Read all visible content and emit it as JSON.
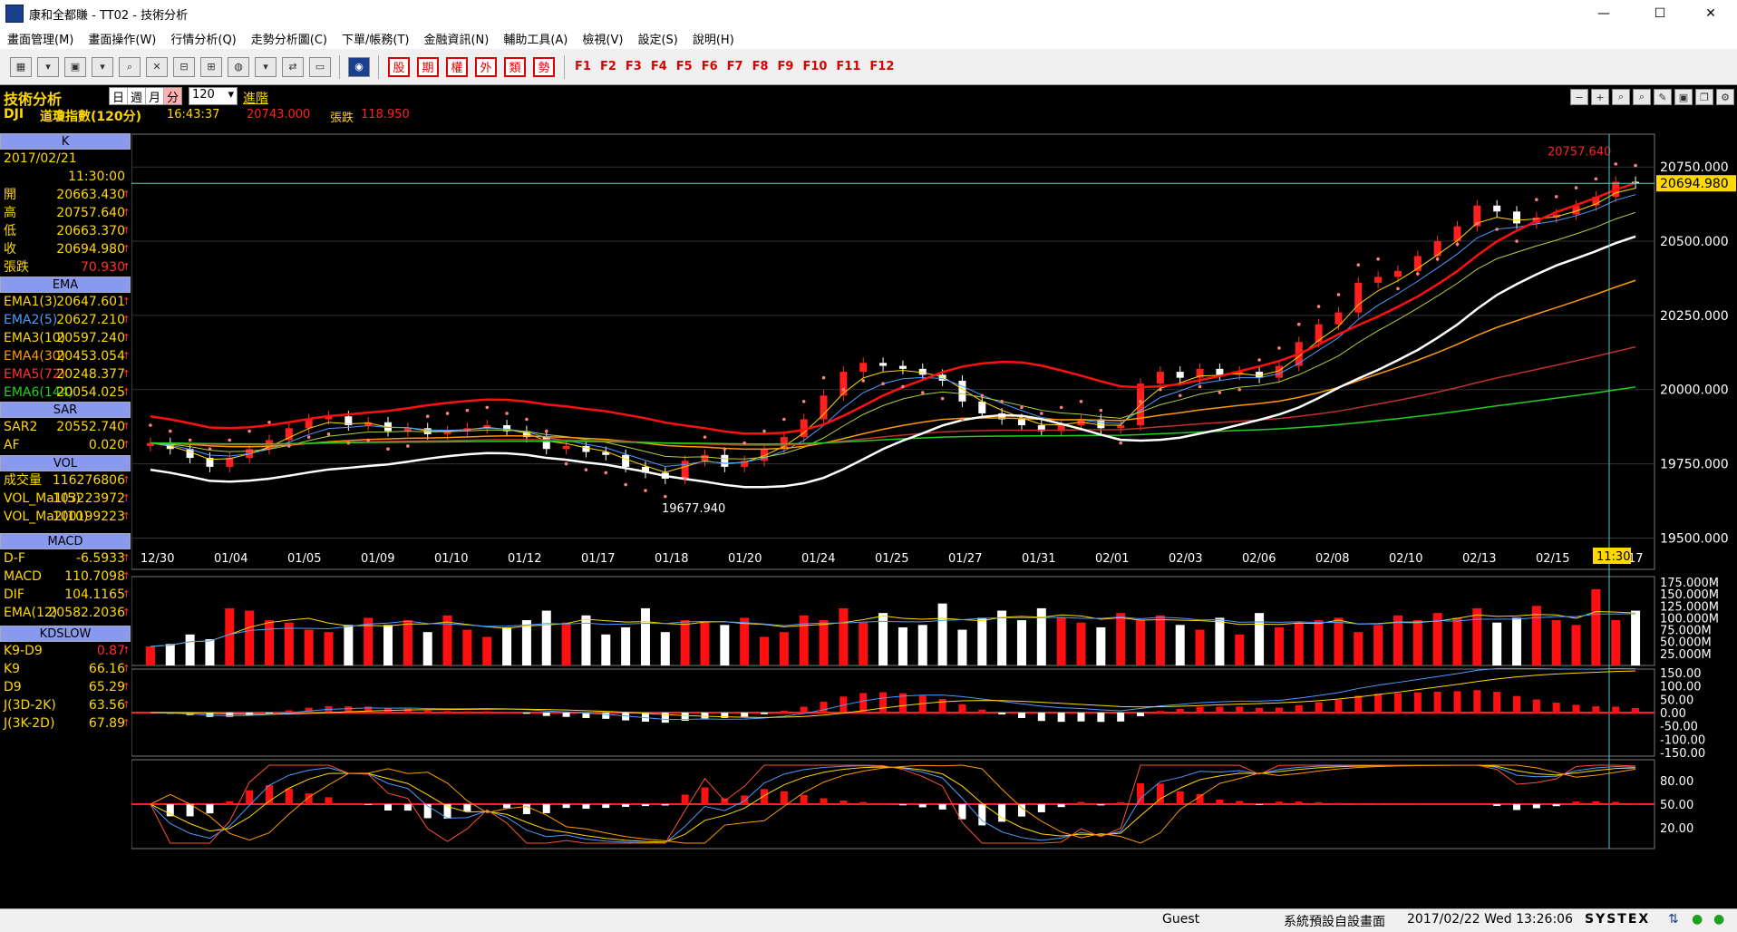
{
  "window": {
    "title": "康和全都賺 - TT02 - 技術分析",
    "minimize": "—",
    "maximize": "☐",
    "close": "✕"
  },
  "menu": [
    "畫面管理(M)",
    "畫面操作(W)",
    "行情分析(Q)",
    "走勢分析圖(C)",
    "下單/帳務(T)",
    "金融資訊(N)",
    "輔助工具(A)",
    "檢視(V)",
    "設定(S)",
    "說明(H)"
  ],
  "toolbar": {
    "market_keys": [
      "股",
      "期",
      "權",
      "外",
      "類",
      "勢"
    ],
    "fkeys": [
      "F1",
      "F2",
      "F3",
      "F4",
      "F5",
      "F6",
      "F7",
      "F8",
      "F9",
      "F10",
      "F11",
      "F12"
    ]
  },
  "info": {
    "panel_title": "技術分析",
    "periods": [
      "日",
      "週",
      "月",
      "分"
    ],
    "count": "120",
    "advanced": "進階",
    "symbol": "DJI",
    "name": "道瓊指數(120分)",
    "time": "16:43:37",
    "price": "20743.000",
    "change_label": "張跌",
    "change": "118.950"
  },
  "k_panel": {
    "title": "K",
    "date": "2017/02/21",
    "time": "11:30:00",
    "rows": [
      {
        "label": "開",
        "value": "20663.430"
      },
      {
        "label": "高",
        "value": "20757.640"
      },
      {
        "label": "低",
        "value": "20663.370"
      },
      {
        "label": "收",
        "value": "20694.980"
      },
      {
        "label": "張跌",
        "value": "70.930"
      }
    ]
  },
  "ema_panel": {
    "title": "EMA",
    "rows": [
      {
        "label": "EMA1(3)",
        "value": "20647.601",
        "color": "#ffd800"
      },
      {
        "label": "EMA2(5)",
        "value": "20627.210",
        "color": "#4a9bff"
      },
      {
        "label": "EMA3(10)",
        "value": "20597.240",
        "color": "#ffd800"
      },
      {
        "label": "EMA4(30)",
        "value": "20453.054",
        "color": "#ff9900"
      },
      {
        "label": "EMA5(72)",
        "value": "20248.377",
        "color": "#ff3030"
      },
      {
        "label": "EMA6(144)",
        "value": "20054.025",
        "color": "#20d020"
      }
    ]
  },
  "sar_panel": {
    "title": "SAR",
    "rows": [
      {
        "label": "SAR2",
        "value": "20552.740"
      },
      {
        "label": "AF",
        "value": "0.020"
      }
    ]
  },
  "vol_panel": {
    "title": "VOL",
    "rows": [
      {
        "label": "成交量",
        "value": "116276806"
      },
      {
        "label": "VOL_Ma1(5)",
        "value": "103223972"
      },
      {
        "label": "VOL_Ma2(10)",
        "value": "100199223"
      }
    ]
  },
  "macd_panel": {
    "title": "MACD",
    "rows": [
      {
        "label": "D-F",
        "value": "-6.5933"
      },
      {
        "label": "MACD",
        "value": "110.7098"
      },
      {
        "label": "DIF",
        "value": "104.1165"
      },
      {
        "label": "EMA(12)",
        "value": "20582.2036"
      }
    ]
  },
  "kd_panel": {
    "title": "KDSLOW",
    "rows": [
      {
        "label": "K9-D9",
        "value": "0.87"
      },
      {
        "label": "K9",
        "value": "66.16"
      },
      {
        "label": "D9",
        "value": "65.29"
      },
      {
        "label": "J(3D-2K)",
        "value": "63.56"
      },
      {
        "label": "J(3K-2D)",
        "value": "67.89"
      }
    ]
  },
  "chart_data": {
    "type": "line",
    "price_axis": [
      "20750.000",
      "20500.000",
      "20250.000",
      "20000.000",
      "19750.000",
      "19500.000"
    ],
    "price_ticks": [
      20750,
      20500,
      20250,
      20000,
      19750,
      19500
    ],
    "ylim": [
      19480,
      20830
    ],
    "current_price": "20694.980",
    "current_value": 20694.98,
    "high_label": "20757.640",
    "high_value": 20757.64,
    "low_label": "19677.940",
    "low_value": 19677.94,
    "x_labels": [
      "12/30",
      "01/04",
      "01/05",
      "01/09",
      "01/10",
      "01/12",
      "01/17",
      "01/18",
      "01/20",
      "01/24",
      "01/25",
      "01/27",
      "01/31",
      "02/01",
      "02/03",
      "02/06",
      "02/08",
      "02/10",
      "02/13",
      "02/15",
      "02/17"
    ],
    "cursor_label": "11:30",
    "close": [
      19820,
      19800,
      19770,
      19740,
      19770,
      19800,
      19830,
      19870,
      19900,
      19910,
      19880,
      19890,
      19860,
      19870,
      19850,
      19860,
      19870,
      19880,
      19860,
      19840,
      19800,
      19810,
      19790,
      19780,
      19740,
      19720,
      19700,
      19760,
      19780,
      19740,
      19760,
      19800,
      19840,
      19900,
      19980,
      20060,
      20090,
      20080,
      20070,
      20050,
      20030,
      19960,
      19920,
      19900,
      19880,
      19860,
      19880,
      19900,
      19870,
      19880,
      20020,
      20060,
      20040,
      20070,
      20050,
      20060,
      20040,
      20080,
      20160,
      20220,
      20260,
      20360,
      20380,
      20400,
      20450,
      20500,
      20550,
      20620,
      20600,
      20560,
      20580,
      20590,
      20620,
      20650,
      20700,
      20695
    ],
    "volume_axis": [
      "175.000M",
      "150.000M",
      "125.000M",
      "100.000M",
      "75.000M",
      "50.000M",
      "25.000M"
    ],
    "volume": [
      40,
      45,
      65,
      55,
      120,
      115,
      95,
      90,
      75,
      70,
      85,
      100,
      85,
      95,
      70,
      105,
      75,
      60,
      80,
      95,
      115,
      90,
      105,
      65,
      80,
      120,
      70,
      95,
      90,
      85,
      100,
      60,
      70,
      105,
      95,
      120,
      90,
      110,
      80,
      85,
      130,
      75,
      100,
      115,
      95,
      120,
      100,
      90,
      80,
      110,
      95,
      105,
      85,
      75,
      100,
      65,
      110,
      80,
      90,
      95,
      100,
      70,
      85,
      105,
      95,
      110,
      100,
      120,
      90,
      100,
      125,
      95,
      85,
      160,
      95,
      115
    ],
    "macd_axis": [
      "150.00",
      "100.00",
      "50.00",
      "0.00",
      "-50.00",
      "-100.00",
      "-150.00"
    ],
    "kd_axis": [
      "80.00",
      "50.00",
      "20.00"
    ]
  },
  "status": {
    "user": "Guest",
    "layout": "系統預設自設畫面",
    "datetime": "2017/02/22 Wed 13:26:06",
    "brand": "SYSTEX"
  }
}
